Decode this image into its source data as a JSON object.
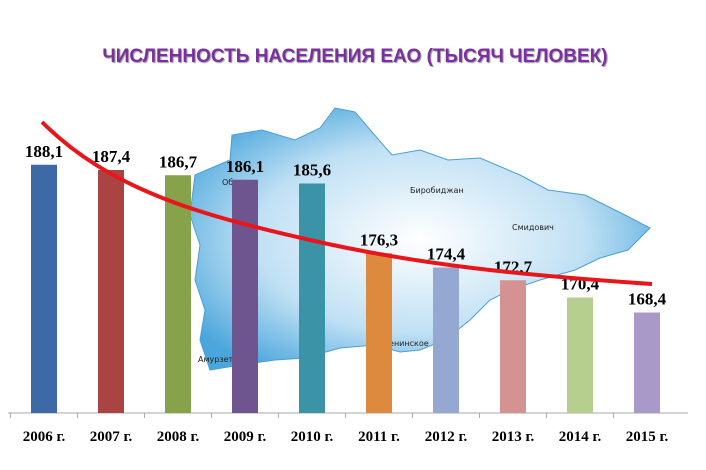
{
  "chart_data": {
    "type": "bar",
    "title": "ЧИСЛЕННОСТЬ  НАСЕЛЕНИЯ  ЕАО (ТЫСЯЧ ЧЕЛОВЕК)",
    "categories": [
      "2006 г.",
      "2007 г.",
      "2008 г.",
      "2009 г.",
      "2010 г.",
      "2011 г.",
      "2012 г.",
      "2013 г.",
      "2014 г.",
      "2015 г."
    ],
    "values": [
      188.1,
      187.4,
      186.7,
      186.1,
      185.6,
      176.3,
      174.4,
      172.7,
      170.4,
      168.4
    ],
    "value_labels": [
      "188,1",
      "187,4",
      "186,7",
      "186,1",
      "185,6",
      "176,3",
      "174,4",
      "172,7",
      "170,4",
      "168,4"
    ],
    "colors": [
      "#3d6aa6",
      "#a94442",
      "#86a24a",
      "#6e5590",
      "#3b93a8",
      "#dd8a3e",
      "#94a8d2",
      "#d49392",
      "#b7cf8e",
      "#a899c8"
    ],
    "ylim": [
      155,
      195
    ]
  },
  "map": {
    "labels": [
      "Биробиджан",
      "Смидович",
      "Амурзет",
      "Облучье",
      "Ленинское"
    ]
  }
}
